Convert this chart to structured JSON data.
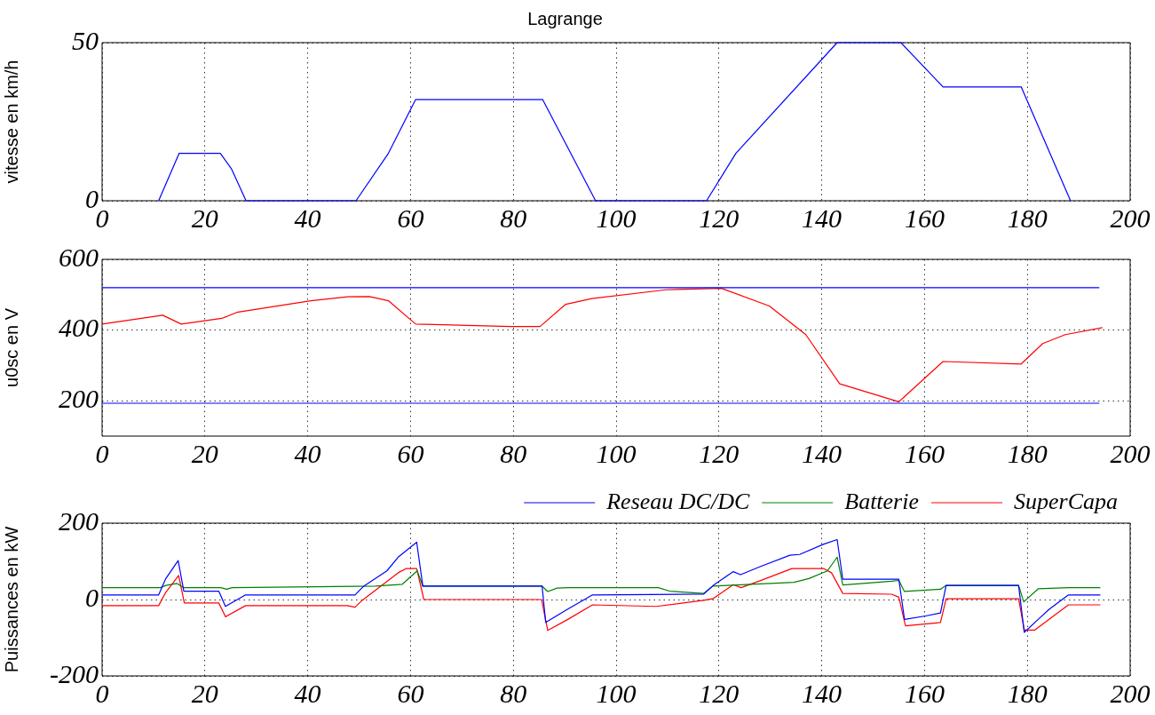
{
  "chart_data": [
    {
      "type": "line",
      "title": "Lagrange",
      "ylabel": "vitesse en km/h",
      "xlim": [
        0,
        200
      ],
      "xticks": [
        0,
        20,
        40,
        60,
        80,
        100,
        120,
        140,
        160,
        180,
        200
      ],
      "ylim": [
        0,
        50
      ],
      "yticks": [
        0,
        50
      ],
      "grid": true,
      "series": [
        {
          "color": "#0000ff",
          "x": [
            11,
            15,
            23,
            25.2,
            28,
            49.4,
            55.7,
            61,
            85.7,
            96,
            117.6,
            123.3,
            143,
            155.4,
            163.6,
            178.8,
            188.4
          ],
          "values": [
            0,
            15,
            15,
            10,
            0,
            0,
            15,
            32,
            32,
            0,
            0,
            15,
            50,
            50,
            36,
            36,
            0
          ]
        }
      ]
    },
    {
      "type": "line",
      "ylabel": "u0sc en V",
      "xlim": [
        0,
        200
      ],
      "xticks": [
        0,
        20,
        40,
        60,
        80,
        100,
        120,
        140,
        160,
        180,
        200
      ],
      "ylim": [
        100,
        600
      ],
      "yticks": [
        200,
        400,
        600
      ],
      "grid": true,
      "series": [
        {
          "color": "#0000ff",
          "x": [
            0,
            194
          ],
          "values": [
            520,
            520
          ]
        },
        {
          "color": "#0000ff",
          "x": [
            0,
            194
          ],
          "values": [
            193,
            193
          ]
        },
        {
          "color": "#ff0000",
          "x": [
            0,
            11.8,
            15.4,
            23.3,
            26.2,
            40.6,
            47.8,
            52,
            55.7,
            61,
            79.4,
            85.2,
            90.2,
            95.3,
            109.7,
            120.5,
            129.8,
            136.9,
            143.5,
            155,
            163.6,
            178.8,
            183,
            187.4,
            194.6
          ],
          "values": [
            417,
            442,
            417,
            433,
            450,
            483,
            494,
            495,
            483,
            417,
            410,
            410,
            473,
            489,
            514,
            518,
            468,
            387,
            248,
            197,
            311,
            304,
            362,
            387,
            407
          ]
        }
      ]
    },
    {
      "type": "line",
      "ylabel": "Puissances en kW",
      "xlim": [
        0,
        200
      ],
      "xticks": [
        0,
        20,
        40,
        60,
        80,
        100,
        120,
        140,
        160,
        180,
        200
      ],
      "ylim": [
        -200,
        200
      ],
      "yticks": [
        -200,
        0,
        200
      ],
      "grid": true,
      "legend": "top right",
      "series": [
        {
          "name": "Reseau DC/DC",
          "color": "#0000ff",
          "x": [
            0,
            11,
            12.4,
            14.8,
            15.9,
            22.7,
            24,
            27.9,
            49.2,
            50.9,
            55.4,
            57.6,
            61.2,
            62.4,
            85.6,
            86.3,
            90.6,
            95.4,
            117,
            118.9,
            122.8,
            124.2,
            128,
            133.8,
            135.7,
            140.4,
            143,
            144.1,
            155,
            156.1,
            160.2,
            163.1,
            164.2,
            178.3,
            179.4,
            182.1,
            184.3,
            188,
            194.2
          ],
          "values": [
            12,
            12,
            55,
            102,
            22,
            22,
            -18,
            12,
            12,
            35,
            75,
            111,
            150,
            35,
            35,
            -60,
            -25,
            12,
            14,
            37,
            73,
            65,
            86,
            116,
            118,
            145,
            157,
            53,
            53,
            -52,
            -43,
            -35,
            37,
            37,
            -86,
            -52,
            -25,
            12,
            12
          ]
        },
        {
          "name": "Batterie",
          "color": "#008000",
          "x": [
            0,
            11.3,
            12.4,
            14.6,
            15.9,
            23.1,
            24.2,
            25.3,
            53.2,
            58.4,
            61.3,
            62.4,
            85.6,
            86.7,
            88.5,
            90.6,
            108.2,
            110.4,
            117,
            118.8,
            134.6,
            137.5,
            141.1,
            143,
            144.1,
            153.6,
            155,
            156.1,
            163.1,
            164.2,
            178.3,
            179.3,
            182.1,
            188,
            194.2
          ],
          "values": [
            31,
            31,
            37,
            42,
            31,
            31,
            27,
            31,
            35,
            40,
            75,
            35,
            35,
            21,
            30,
            31,
            31,
            22,
            16,
            35,
            45,
            55,
            75,
            111,
            38,
            48,
            50,
            21,
            27,
            37,
            37,
            -6,
            28,
            31,
            31
          ]
        },
        {
          "name": "SuperCapa",
          "color": "#ff0000",
          "x": [
            0,
            11,
            12.4,
            14.9,
            16,
            22.7,
            24,
            27.9,
            47.7,
            49.2,
            50.7,
            57.6,
            59.1,
            61.2,
            62.6,
            85.5,
            86.7,
            90.6,
            95.4,
            107.8,
            117,
            118.8,
            122.8,
            124.3,
            128,
            134.2,
            140.4,
            141.9,
            144.1,
            153.6,
            155,
            156.3,
            163.1,
            164.2,
            178.3,
            179.4,
            181.4,
            188,
            194.2
          ],
          "values": [
            -16,
            -16,
            19,
            63,
            -9,
            -9,
            -45,
            -16,
            -16,
            -20,
            -1,
            70,
            81,
            81,
            0,
            0,
            -81,
            -52,
            -14,
            -18,
            -2,
            2,
            39,
            31,
            49,
            81,
            81,
            70,
            16,
            14,
            6,
            -69,
            -60,
            2,
            2,
            -80,
            -80,
            -14,
            -14
          ]
        }
      ]
    }
  ]
}
